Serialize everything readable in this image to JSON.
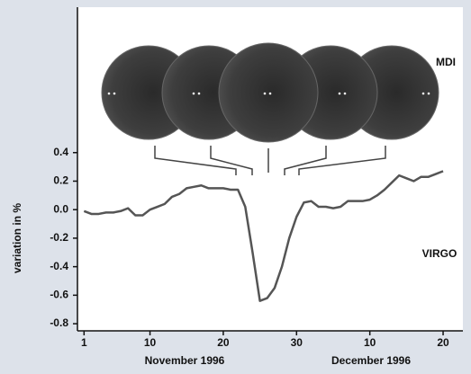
{
  "chart_data": {
    "type": "line",
    "y_label": "variation in %",
    "annotations": [
      "MDI",
      "VIRGO",
      "November 1996",
      "December 1996"
    ],
    "x": [
      1,
      2,
      3,
      4,
      5,
      6,
      7,
      8,
      9,
      10,
      11,
      12,
      13,
      14,
      15,
      16,
      17,
      18,
      19,
      20,
      21,
      22,
      23,
      24,
      25,
      26,
      27,
      28,
      29,
      30,
      31,
      32,
      33,
      34,
      35,
      36,
      37,
      38,
      39,
      40,
      41,
      42,
      43,
      44,
      45,
      46,
      47,
      48,
      49,
      50
    ],
    "series": [
      {
        "name": "VIRGO",
        "color": "#555555",
        "values": [
          -0.01,
          -0.03,
          -0.03,
          -0.02,
          -0.02,
          -0.01,
          0.01,
          -0.04,
          -0.04,
          0.0,
          0.02,
          0.04,
          0.09,
          0.11,
          0.15,
          0.16,
          0.17,
          0.15,
          0.15,
          0.15,
          0.14,
          0.14,
          0.02,
          -0.3,
          -0.64,
          -0.62,
          -0.55,
          -0.4,
          -0.2,
          -0.05,
          0.05,
          0.06,
          0.02,
          0.02,
          0.01,
          0.02,
          0.06,
          0.06,
          0.06,
          0.07,
          0.1,
          0.14,
          0.19,
          0.24,
          0.22,
          0.2,
          0.23,
          0.23,
          0.25,
          0.27
        ]
      }
    ],
    "xlim": [
      0.1,
      52.7
    ],
    "xticks": [
      1,
      10,
      20,
      30,
      {
        "value": 40,
        "label": "10"
      },
      {
        "value": 50,
        "label": "20"
      }
    ],
    "ylim": [
      -0.85,
      1.42
    ],
    "yticks": [
      -0.8,
      -0.6,
      -0.4,
      -0.2,
      {
        "value": 0,
        "label": "0.0"
      },
      0.2,
      0.4
    ]
  }
}
